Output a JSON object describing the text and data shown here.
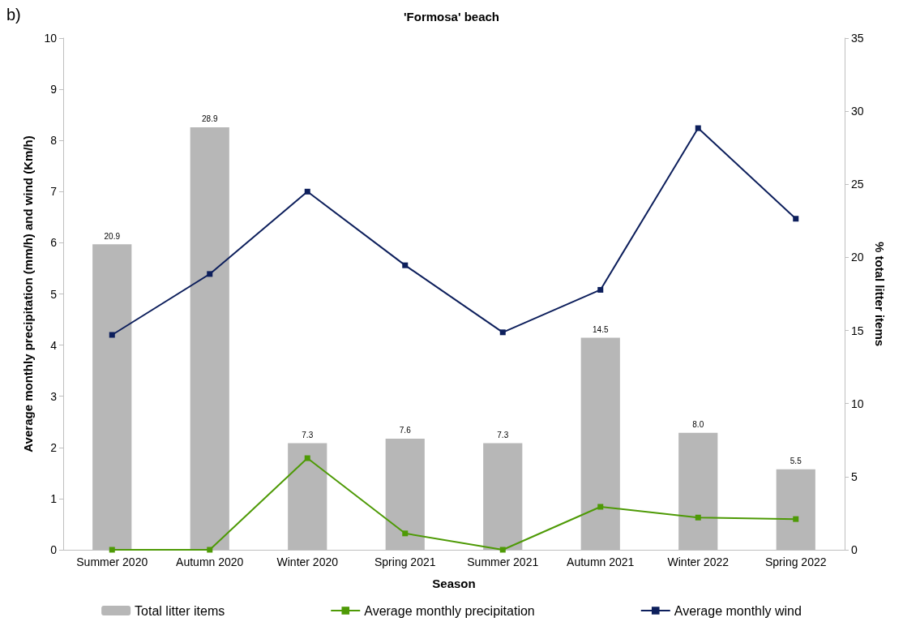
{
  "chart_data": {
    "type": "bar",
    "title": "'Formosa' beach",
    "xlabel": "Season",
    "ylabel": "Average monthly precipitation (mm/h) and wind (Km/h)",
    "y2label": "% total litter items",
    "annotations": [
      "b)"
    ],
    "categories": [
      "Summer 2020",
      "Autumn 2020",
      "Winter 2020",
      "Spring 2021",
      "Summer 2021",
      "Autumn 2021",
      "Winter 2022",
      "Spring 2022"
    ],
    "series": [
      {
        "name": "Total litter items",
        "axis": "y2",
        "color": "#b7b7b7",
        "values": [
          20.9,
          28.9,
          7.3,
          7.6,
          7.3,
          14.5,
          8.0,
          5.5
        ],
        "value_labels": [
          "20.9",
          "28.9",
          "7.3",
          "7.6",
          "7.3",
          "14.5",
          "8.0",
          "5.5"
        ]
      },
      {
        "name": "Average monthly precipitation",
        "type": "line",
        "color": "#4e9a06",
        "values": [
          0,
          0,
          1.79,
          0.32,
          0,
          0.84,
          0.63,
          0.6
        ]
      },
      {
        "name": "Average monthly wind",
        "type": "line",
        "color": "#0d1f5c",
        "values": [
          4.2,
          5.39,
          7.0,
          5.56,
          4.25,
          5.08,
          8.24,
          6.47
        ]
      }
    ],
    "ylim": [
      0,
      10
    ],
    "yticks": [
      0,
      1,
      2,
      3,
      4,
      5,
      6,
      7,
      8,
      9,
      10
    ],
    "y2lim": [
      0,
      35
    ],
    "y2ticks": [
      0,
      5,
      10,
      15,
      20,
      25,
      30,
      35
    ],
    "marker": "square",
    "line_style": "solid",
    "grid": false,
    "legend": "bottom"
  }
}
